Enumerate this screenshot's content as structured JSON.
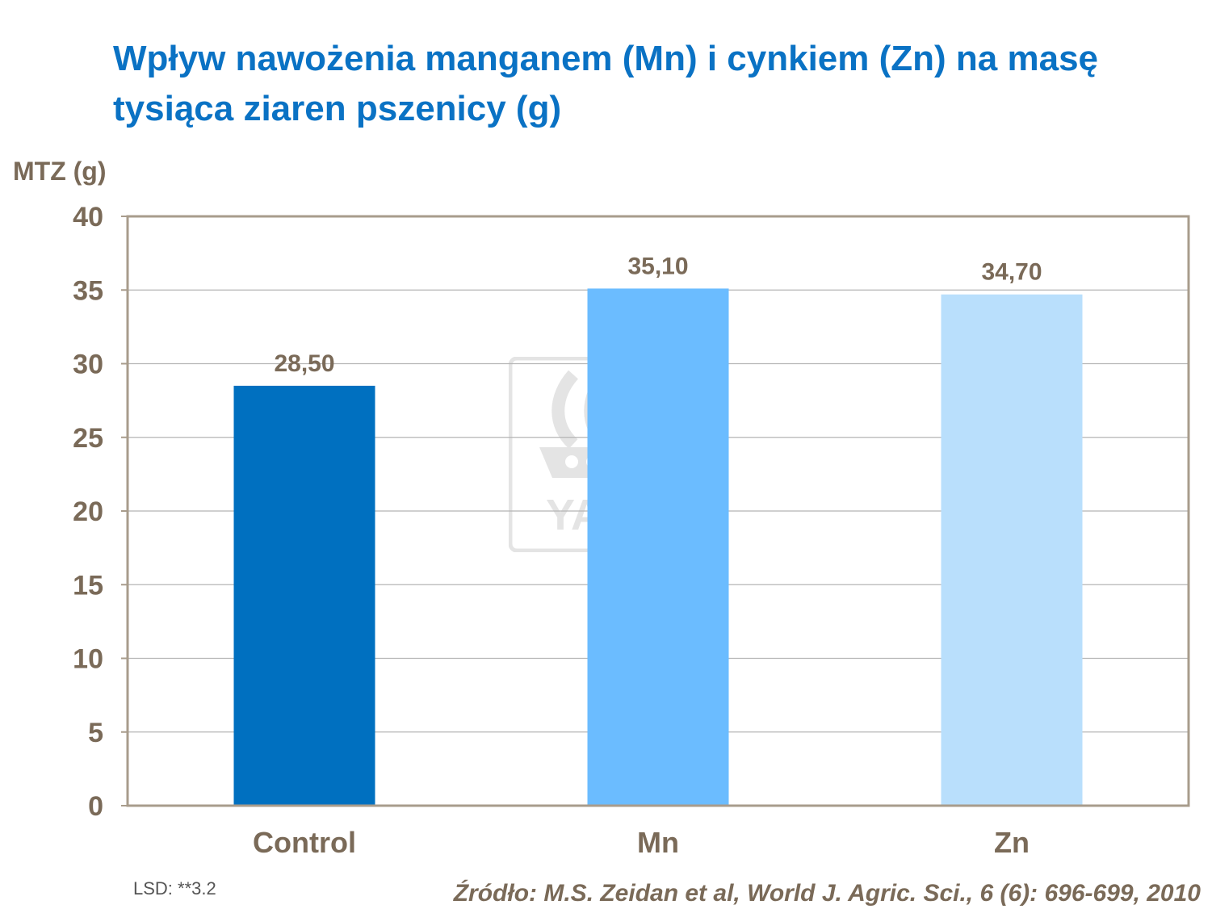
{
  "title": "Wpływ nawożenia manganem (Mn) i cynkiem (Zn) na masę tysiąca ziaren pszenicy (g)",
  "watermark_text": "YARA",
  "footnote_lsd": "LSD: **3.2",
  "source": "Źródło: M.S. Zeidan et al, World J. Agric. Sci., 6 (6): 696-699, 2010",
  "colors": {
    "axis_text": "#7a6a58",
    "title": "#0a72c4",
    "bars": [
      "#0070c0",
      "#6bbcff",
      "#b9dffc"
    ]
  },
  "chart_data": {
    "type": "bar",
    "title": "",
    "xlabel": "",
    "ylabel": "MTZ (g)",
    "categories": [
      "Control",
      "Mn",
      "Zn"
    ],
    "values": [
      28.5,
      35.1,
      34.7
    ],
    "data_labels": [
      "28,50",
      "35,10",
      "34,70"
    ],
    "ylim": [
      0,
      40
    ],
    "yticks": [
      0,
      5,
      10,
      15,
      20,
      25,
      30,
      35,
      40
    ],
    "grid": true,
    "legend": "none"
  }
}
